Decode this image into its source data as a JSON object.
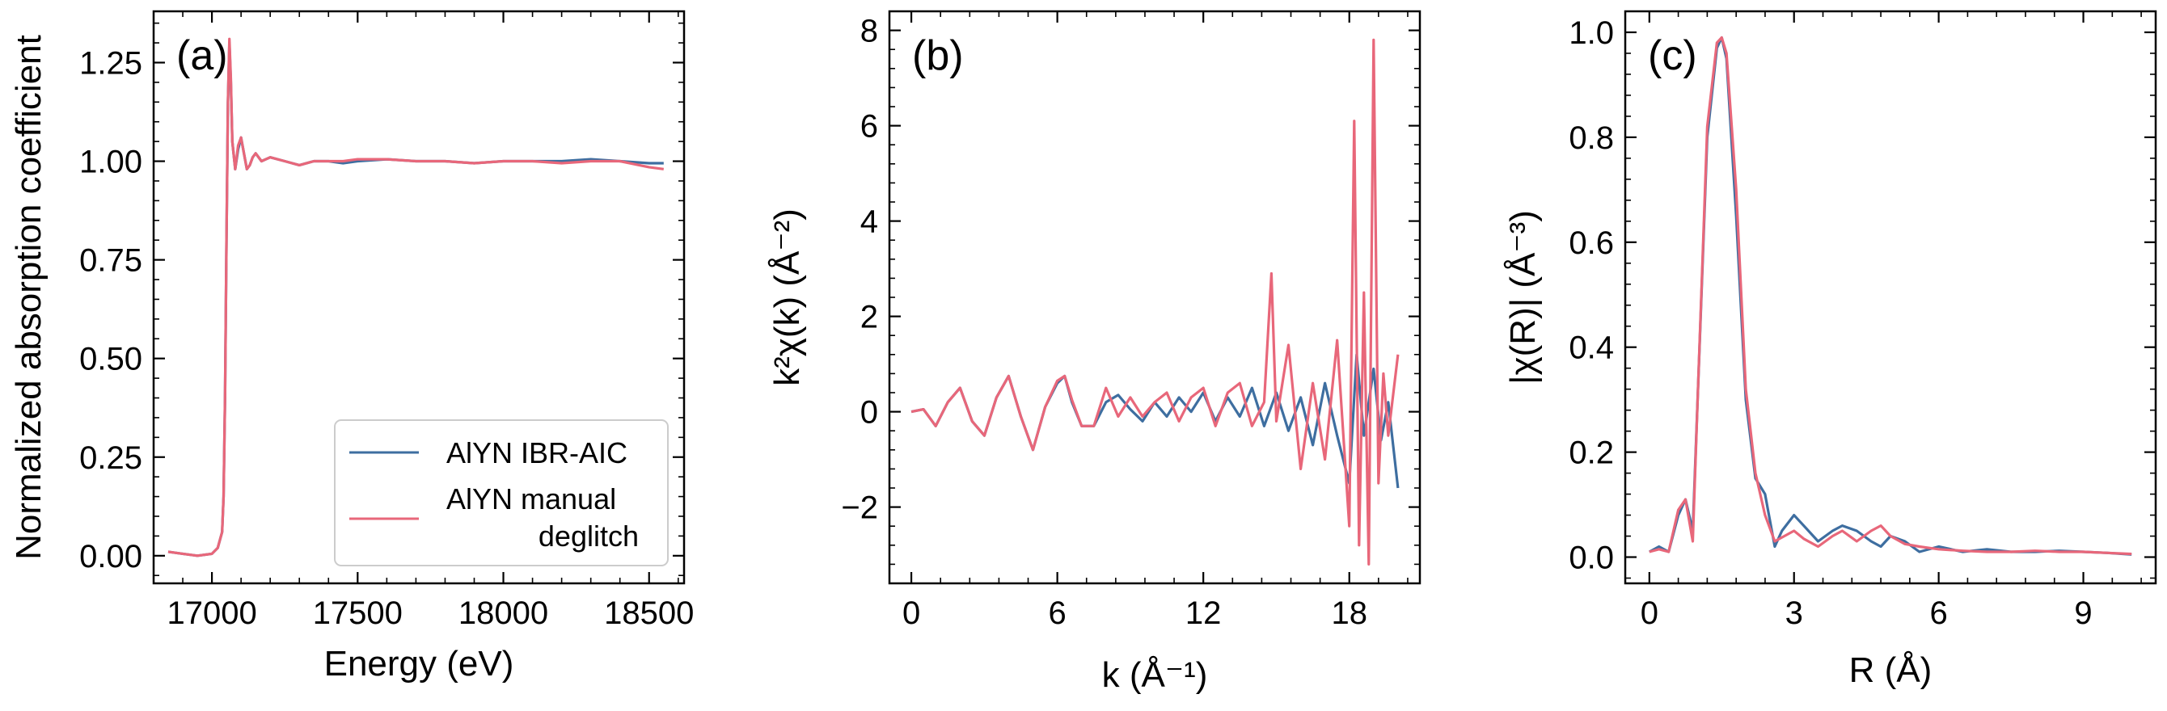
{
  "colors": {
    "series_blue": "#3e6ea0",
    "series_red": "#e8677a"
  },
  "chart_data": [
    {
      "id": "a",
      "type": "line",
      "panel_label": "(a)",
      "xlabel": "Energy (eV)",
      "ylabel": "Normalized absorption coefficient",
      "xlim": [
        16800,
        18620
      ],
      "ylim": [
        -0.07,
        1.38
      ],
      "xticks": [
        17000,
        17500,
        18000,
        18500
      ],
      "xtick_labels": [
        "17000",
        "17500",
        "18000",
        "18500"
      ],
      "yticks": [
        0.0,
        0.25,
        0.5,
        0.75,
        1.0,
        1.25
      ],
      "ytick_labels": [
        "0.00",
        "0.25",
        "0.50",
        "0.75",
        "1.00",
        "1.25"
      ],
      "legend": {
        "position": "lower-right",
        "entries": [
          {
            "label": "AlYN IBR-AIC",
            "color": "#3e6ea0"
          },
          {
            "label": "AlYN manual",
            "label2": "deglitch",
            "color": "#e8677a"
          }
        ]
      },
      "series": [
        {
          "color": "#3e6ea0",
          "x": [
            16850,
            16900,
            16950,
            17000,
            17020,
            17035,
            17040,
            17045,
            17050,
            17055,
            17060,
            17065,
            17070,
            17080,
            17090,
            17100,
            17110,
            17120,
            17130,
            17140,
            17150,
            17170,
            17200,
            17250,
            17300,
            17350,
            17400,
            17450,
            17500,
            17600,
            17700,
            17800,
            17900,
            18000,
            18100,
            18200,
            18300,
            18400,
            18500,
            18550
          ],
          "y": [
            0.01,
            0.005,
            0.0,
            0.005,
            0.02,
            0.06,
            0.15,
            0.4,
            0.8,
            1.15,
            1.3,
            1.2,
            1.05,
            0.98,
            1.03,
            1.06,
            1.02,
            0.98,
            0.99,
            1.01,
            1.02,
            1.0,
            1.01,
            1.0,
            0.99,
            1.0,
            1.0,
            0.995,
            1.0,
            1.005,
            1.0,
            1.0,
            0.995,
            1.0,
            1.0,
            1.0,
            1.005,
            1.0,
            0.995,
            0.995
          ]
        },
        {
          "color": "#e8677a",
          "x": [
            16850,
            16900,
            16950,
            17000,
            17020,
            17035,
            17040,
            17045,
            17050,
            17055,
            17060,
            17065,
            17070,
            17080,
            17090,
            17100,
            17110,
            17120,
            17130,
            17140,
            17150,
            17170,
            17200,
            17250,
            17300,
            17350,
            17400,
            17450,
            17500,
            17600,
            17700,
            17800,
            17900,
            18000,
            18100,
            18200,
            18300,
            18400,
            18500,
            18550
          ],
          "y": [
            0.01,
            0.005,
            0.0,
            0.005,
            0.02,
            0.06,
            0.15,
            0.4,
            0.8,
            1.15,
            1.31,
            1.21,
            1.05,
            0.98,
            1.04,
            1.06,
            1.02,
            0.98,
            0.99,
            1.01,
            1.02,
            1.0,
            1.01,
            1.0,
            0.99,
            1.0,
            1.0,
            1.0,
            1.005,
            1.005,
            1.0,
            1.0,
            0.995,
            1.0,
            1.0,
            0.995,
            1.0,
            1.0,
            0.985,
            0.98
          ]
        }
      ]
    },
    {
      "id": "b",
      "type": "line",
      "panel_label": "(b)",
      "xlabel": "k (Å⁻¹)",
      "ylabel": "k²χ(k) (Å⁻²)",
      "xlim": [
        -0.9,
        20.9
      ],
      "ylim": [
        -3.6,
        8.4
      ],
      "xticks": [
        0,
        6,
        12,
        18
      ],
      "xtick_labels": [
        "0",
        "6",
        "12",
        "18"
      ],
      "yticks": [
        -2,
        0,
        2,
        4,
        6,
        8
      ],
      "ytick_labels": [
        "−2",
        "0",
        "2",
        "4",
        "6",
        "8"
      ],
      "series": [
        {
          "color": "#3e6ea0",
          "x": [
            0,
            0.5,
            1.0,
            1.5,
            2.0,
            2.5,
            3.0,
            3.5,
            4.0,
            4.5,
            5.0,
            5.5,
            6.0,
            6.3,
            6.6,
            7.0,
            7.5,
            8.0,
            8.5,
            9.0,
            9.5,
            10.0,
            10.5,
            11.0,
            11.5,
            12.0,
            12.5,
            13.0,
            13.5,
            14.0,
            14.5,
            15.0,
            15.5,
            16.0,
            16.5,
            17.0,
            17.5,
            18.0,
            18.3,
            18.6,
            19.0,
            19.3,
            19.6,
            20.0
          ],
          "y": [
            0,
            0.05,
            -0.3,
            0.2,
            0.5,
            -0.2,
            -0.5,
            0.3,
            0.75,
            -0.1,
            -0.8,
            0.1,
            0.6,
            0.75,
            0.2,
            -0.3,
            -0.3,
            0.2,
            0.35,
            0.05,
            -0.2,
            0.2,
            -0.1,
            0.3,
            0.0,
            0.4,
            -0.2,
            0.3,
            -0.1,
            0.5,
            -0.3,
            0.4,
            -0.4,
            0.3,
            -0.7,
            0.6,
            -0.5,
            -1.5,
            1.2,
            -0.5,
            0.9,
            -0.6,
            0.2,
            -1.6
          ]
        },
        {
          "color": "#e8677a",
          "x": [
            0,
            0.5,
            1.0,
            1.5,
            2.0,
            2.5,
            3.0,
            3.5,
            4.0,
            4.5,
            5.0,
            5.5,
            6.0,
            6.3,
            6.6,
            7.0,
            7.5,
            8.0,
            8.5,
            9.0,
            9.5,
            10.0,
            10.5,
            11.0,
            11.5,
            12.0,
            12.5,
            13.0,
            13.5,
            14.0,
            14.5,
            14.8,
            15.0,
            15.5,
            16.0,
            16.5,
            17.0,
            17.5,
            18.0,
            18.2,
            18.4,
            18.6,
            18.8,
            19.0,
            19.2,
            19.4,
            19.6,
            20.0
          ],
          "y": [
            0,
            0.05,
            -0.3,
            0.2,
            0.5,
            -0.2,
            -0.5,
            0.3,
            0.75,
            -0.1,
            -0.8,
            0.1,
            0.65,
            0.75,
            0.25,
            -0.3,
            -0.3,
            0.5,
            -0.1,
            0.3,
            -0.1,
            0.2,
            0.4,
            -0.2,
            0.3,
            0.5,
            -0.3,
            0.4,
            0.6,
            -0.3,
            0.2,
            2.9,
            -0.2,
            1.4,
            -1.2,
            0.6,
            -1.0,
            1.5,
            -2.4,
            6.1,
            -2.8,
            2.5,
            -3.2,
            7.8,
            -1.5,
            0.8,
            -0.5,
            1.2
          ]
        }
      ]
    },
    {
      "id": "c",
      "type": "line",
      "panel_label": "(c)",
      "xlabel": "R (Å)",
      "ylabel": "|χ(R)| (Å⁻³)",
      "xlim": [
        -0.5,
        10.5
      ],
      "ylim": [
        -0.05,
        1.04
      ],
      "xticks": [
        0,
        3,
        6,
        9
      ],
      "xtick_labels": [
        "0",
        "3",
        "6",
        "9"
      ],
      "yticks": [
        0.0,
        0.2,
        0.4,
        0.6,
        0.8,
        1.0
      ],
      "ytick_labels": [
        "0.0",
        "0.2",
        "0.4",
        "0.6",
        "0.8",
        "1.0"
      ],
      "series": [
        {
          "color": "#3e6ea0",
          "x": [
            0,
            0.2,
            0.4,
            0.6,
            0.75,
            0.9,
            1.0,
            1.2,
            1.4,
            1.5,
            1.6,
            1.8,
            2.0,
            2.2,
            2.4,
            2.6,
            2.75,
            3.0,
            3.2,
            3.5,
            3.8,
            4.0,
            4.3,
            4.6,
            4.8,
            5.0,
            5.3,
            5.6,
            6.0,
            6.5,
            7.0,
            7.5,
            8.0,
            8.5,
            9.0,
            9.5,
            10.0
          ],
          "y": [
            0.01,
            0.02,
            0.01,
            0.08,
            0.11,
            0.05,
            0.3,
            0.8,
            0.97,
            0.99,
            0.95,
            0.65,
            0.3,
            0.15,
            0.12,
            0.02,
            0.05,
            0.08,
            0.06,
            0.03,
            0.05,
            0.06,
            0.05,
            0.03,
            0.02,
            0.04,
            0.03,
            0.01,
            0.02,
            0.01,
            0.015,
            0.01,
            0.01,
            0.012,
            0.01,
            0.008,
            0.005
          ]
        },
        {
          "color": "#e8677a",
          "x": [
            0,
            0.2,
            0.4,
            0.6,
            0.75,
            0.9,
            1.0,
            1.2,
            1.4,
            1.5,
            1.6,
            1.8,
            2.0,
            2.2,
            2.4,
            2.6,
            2.8,
            3.0,
            3.2,
            3.5,
            3.8,
            4.0,
            4.3,
            4.6,
            4.8,
            5.0,
            5.3,
            5.6,
            6.0,
            6.5,
            7.0,
            7.5,
            8.0,
            8.5,
            9.0,
            9.5,
            10.0
          ],
          "y": [
            0.01,
            0.015,
            0.01,
            0.09,
            0.11,
            0.03,
            0.3,
            0.82,
            0.98,
            0.99,
            0.96,
            0.7,
            0.32,
            0.16,
            0.08,
            0.03,
            0.04,
            0.05,
            0.035,
            0.02,
            0.04,
            0.05,
            0.03,
            0.05,
            0.06,
            0.04,
            0.025,
            0.02,
            0.015,
            0.012,
            0.01,
            0.01,
            0.012,
            0.01,
            0.01,
            0.008,
            0.006
          ]
        }
      ]
    }
  ]
}
